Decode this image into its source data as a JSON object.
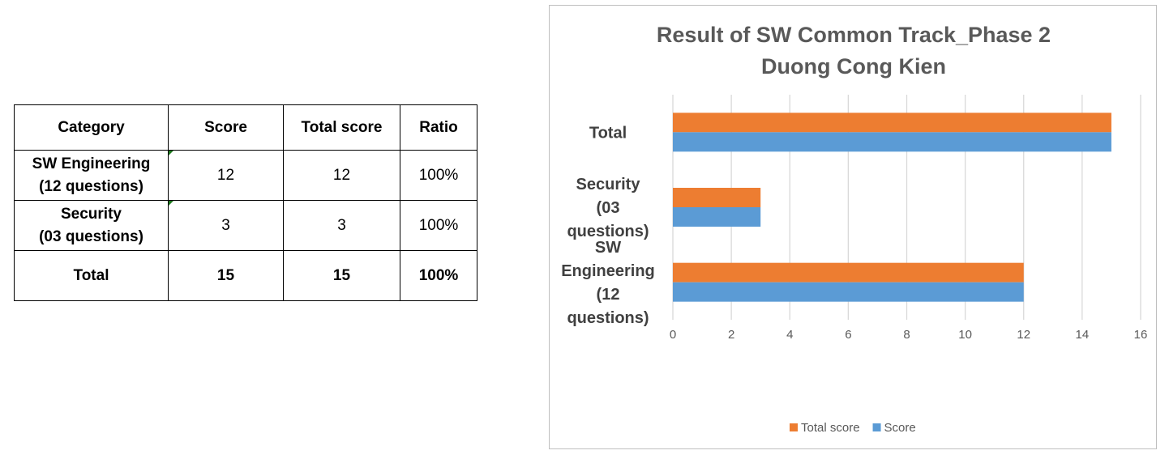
{
  "table": {
    "headers": [
      "Category",
      "Score",
      "Total score",
      "Ratio"
    ],
    "rows": [
      {
        "category_line1": "SW Engineering",
        "category_line2": "(12 questions)",
        "score": "12",
        "total": "12",
        "ratio": "100%"
      },
      {
        "category_line1": "Security",
        "category_line2": "(03 questions)",
        "score": "3",
        "total": "3",
        "ratio": "100%"
      }
    ],
    "total_row": {
      "category": "Total",
      "score": "15",
      "total": "15",
      "ratio": "100%"
    }
  },
  "chart_data": {
    "type": "bar",
    "orientation": "horizontal",
    "title_line1": "Result of SW Common Track_Phase 2",
    "title_line2": "Duong Cong Kien",
    "categories": [
      "SW Engineering (12 questions)",
      "Security (03 questions)",
      "Total"
    ],
    "category_label_lines": [
      [
        "SW",
        "Engineering",
        "(12",
        "questions)"
      ],
      [
        "Security",
        "(03",
        "questions)"
      ],
      [
        "Total"
      ]
    ],
    "series": [
      {
        "name": "Score",
        "color": "#5b9bd5",
        "values": [
          12,
          3,
          15
        ]
      },
      {
        "name": "Total score",
        "color": "#ed7d31",
        "values": [
          12,
          3,
          15
        ]
      }
    ],
    "legend_order": [
      "Total score",
      "Score"
    ],
    "legend_position": "bottom",
    "xlim": [
      0,
      16
    ],
    "x_ticks": [
      "0",
      "2",
      "4",
      "6",
      "8",
      "10",
      "12",
      "14",
      "16"
    ],
    "grid": true,
    "gridline_color": "#d9d9d9"
  }
}
